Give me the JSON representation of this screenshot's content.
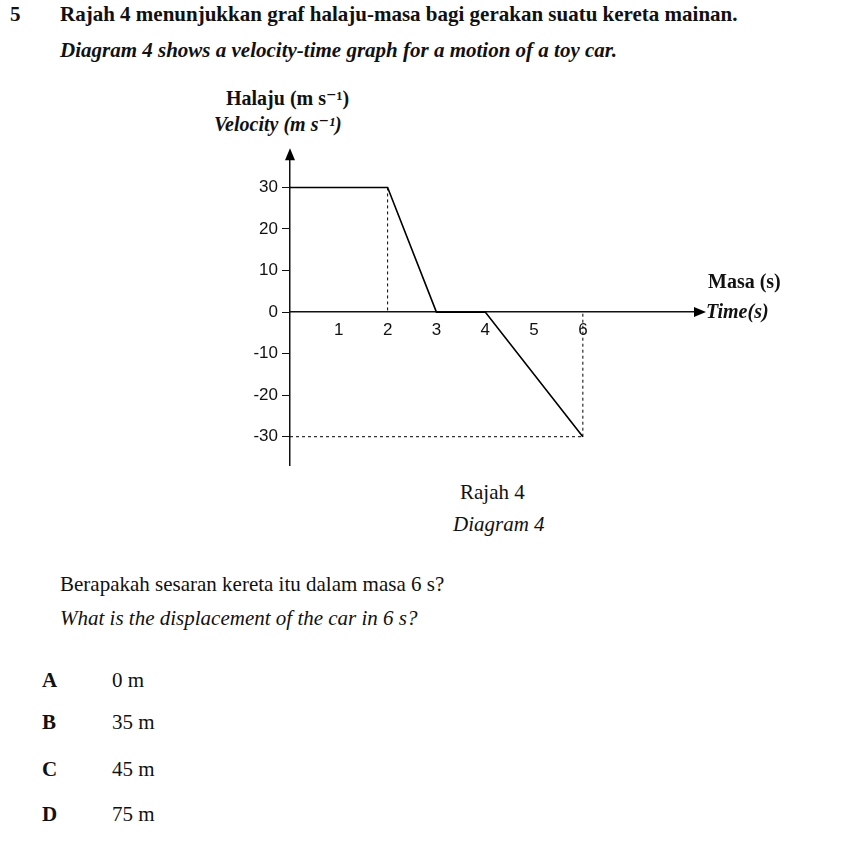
{
  "question_number": "5",
  "intro": [
    "Rajah 4 menunjukkan graf halaju-masa bagi gerakan suatu kereta mainan.",
    "Diagram 4 shows a velocity-time graph for a motion of a toy car."
  ],
  "chart_data": {
    "type": "line",
    "y_label": [
      "Halaju (m s⁻¹)",
      "Velocity (m s⁻¹)"
    ],
    "x_label": [
      "Masa (s)",
      "Time(s)"
    ],
    "x": [
      0,
      2,
      3,
      4,
      6
    ],
    "values": [
      30,
      30,
      0,
      0,
      -30
    ],
    "color": "#000000",
    "xlim": [
      0,
      8.4
    ],
    "xticks": [
      1,
      2,
      3,
      4,
      5,
      6
    ],
    "ylim": [
      -37,
      38
    ],
    "yticks": [
      -30,
      -20,
      -10,
      0,
      10,
      20,
      30
    ],
    "grid": false
  },
  "caption": [
    "Rajah 4",
    "Diagram 4"
  ],
  "question": [
    "Berapakah sesaran kereta itu dalam masa 6 s?",
    "What is the displacement of the car in 6 s?"
  ],
  "options": [
    {
      "letter": "A",
      "text": "0 m"
    },
    {
      "letter": "B",
      "text": "35 m"
    },
    {
      "letter": "C",
      "text": "45 m"
    },
    {
      "letter": "D",
      "text": "75 m"
    }
  ]
}
